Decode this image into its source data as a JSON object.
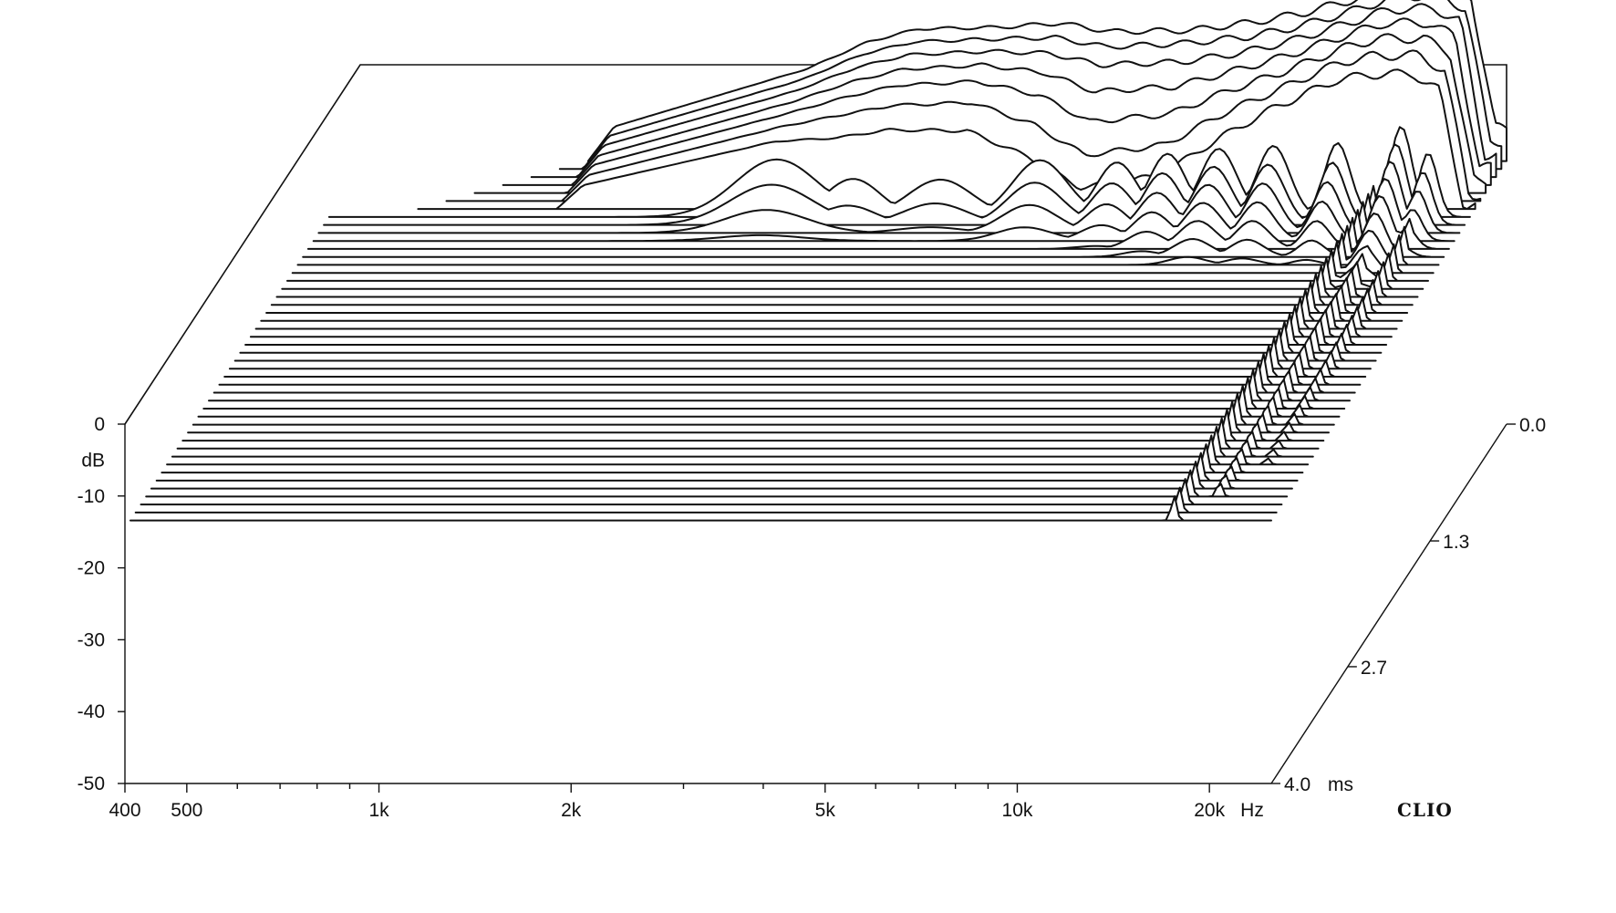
{
  "chart_data": {
    "type": "waterfall",
    "brand": "CLIO",
    "x_axis": {
      "scale": "log",
      "range_hz": [
        400,
        25000
      ],
      "unit_label": "Hz",
      "ticks": [
        {
          "value": 400,
          "label": "400"
        },
        {
          "value": 500,
          "label": "500"
        },
        {
          "value": 1000,
          "label": "1k"
        },
        {
          "value": 2000,
          "label": "2k"
        },
        {
          "value": 5000,
          "label": "5k"
        },
        {
          "value": 10000,
          "label": "10k"
        },
        {
          "value": 20000,
          "label": "20k"
        }
      ],
      "minor_ticks_hz": [
        600,
        700,
        800,
        900,
        3000,
        4000,
        6000,
        7000,
        8000,
        9000
      ]
    },
    "y_axis": {
      "unit_label": "dB",
      "range_db": [
        -50,
        0
      ],
      "ticks": [
        {
          "value": 0,
          "label": "0"
        },
        {
          "value": -10,
          "label": "-10"
        },
        {
          "value": -20,
          "label": "-20"
        },
        {
          "value": -30,
          "label": "-30"
        },
        {
          "value": -40,
          "label": "-40"
        },
        {
          "value": -50,
          "label": "-50"
        }
      ]
    },
    "z_axis": {
      "unit_label": "ms",
      "range_ms": [
        0,
        4.0
      ],
      "ticks": [
        {
          "value": 0.0,
          "label": "0.0"
        },
        {
          "value": 1.3,
          "label": "1.3"
        },
        {
          "value": 2.7,
          "label": "2.7"
        },
        {
          "value": 4.0,
          "label": "4.0"
        }
      ]
    },
    "floor_db": -13.4,
    "slice_count": 46,
    "slice_step_ms": 0.0889,
    "first_slice_freq_hz": 910,
    "anchor_freq_hz": [
      400,
      910,
      1000,
      2000,
      2500,
      3000,
      4000,
      5000,
      6000,
      8000,
      10000,
      12000,
      15000,
      17000,
      20000,
      22000,
      24000
    ],
    "slices_db": [
      [
        -13.4,
        -13.4,
        -8.6,
        -0.6,
        3.2,
        5.0,
        5.2,
        5.8,
        4.6,
        4.8,
        5.9,
        7.2,
        9.5,
        11.3,
        11.5,
        9.6,
        -8.8
      ],
      [
        -13.4,
        -13.4,
        -8.8,
        -1.0,
        2.6,
        4.3,
        4.7,
        4.9,
        3.6,
        4.1,
        5.0,
        6.4,
        8.9,
        10.6,
        10.8,
        8.9,
        -9.5
      ],
      [
        -13.4,
        -13.4,
        -9.0,
        -1.4,
        1.9,
        3.6,
        4.1,
        3.8,
        2.2,
        2.6,
        3.9,
        5.6,
        8.3,
        9.9,
        10.1,
        8.2,
        -10.3
      ],
      [
        -13.4,
        -13.4,
        -9.3,
        -1.9,
        1.0,
        2.7,
        3.3,
        2.2,
        -0.4,
        0.3,
        2.6,
        4.6,
        7.6,
        9.1,
        9.2,
        7.2,
        -11.0
      ],
      [
        -13.4,
        -13.4,
        -9.5,
        -2.4,
        0.0,
        1.6,
        2.1,
        0.2,
        -3.5,
        -2.4,
        1.0,
        3.4,
        6.8,
        8.1,
        8.1,
        6.1,
        -11.8
      ],
      [
        -13.4,
        -13.4,
        -9.8,
        -3.1,
        -1.4,
        -0.1,
        0.3,
        -2.8,
        -7.0,
        -5.6,
        -1.0,
        2.0,
        5.8,
        6.8,
        6.9,
        4.7,
        -12.5
      ],
      [
        -13.4,
        -13.4,
        -10.1,
        -4.0,
        -3.5,
        -2.4,
        -2.5,
        -6.2,
        -10.4,
        -8.8,
        -3.4,
        0.5,
        4.4,
        5.3,
        5.4,
        3.0,
        -13.1
      ]
    ],
    "decay_lobes": [
      {
        "center_hz": 2050,
        "width_octaves": 0.45,
        "start_db": -3.0,
        "decay_db_per_slice": 2.4
      },
      {
        "center_hz": 2700,
        "width_octaves": 0.3,
        "start_db": -5.5,
        "decay_db_per_slice": 2.6
      },
      {
        "center_hz": 3700,
        "width_octaves": 0.35,
        "start_db": -6.0,
        "decay_db_per_slice": 2.2
      },
      {
        "center_hz": 5300,
        "width_octaves": 0.3,
        "start_db": -3.5,
        "decay_db_per_slice": 2.0
      },
      {
        "center_hz": 7000,
        "width_octaves": 0.22,
        "start_db": -4.0,
        "decay_db_per_slice": 1.8
      },
      {
        "center_hz": 8400,
        "width_octaves": 0.2,
        "start_db": -3.0,
        "decay_db_per_slice": 1.6
      },
      {
        "center_hz": 10100,
        "width_octaves": 0.2,
        "start_db": -2.5,
        "decay_db_per_slice": 1.4
      },
      {
        "center_hz": 12300,
        "width_octaves": 0.18,
        "start_db": -2.0,
        "decay_db_per_slice": 1.5
      },
      {
        "center_hz": 15500,
        "width_octaves": 0.14,
        "start_db": -1.5,
        "decay_db_per_slice": 1.6
      },
      {
        "center_hz": 19500,
        "width_octaves": 0.12,
        "start_db": 0.5,
        "decay_db_per_slice": 1.3
      },
      {
        "center_hz": 21500,
        "width_octaves": 0.1,
        "start_db": -3.0,
        "decay_db_per_slice": 1.5
      }
    ],
    "resonance_ridges": [
      {
        "freq_hz": 17600,
        "peak_db": -6.0,
        "slices_from": 6,
        "slices_to": 45,
        "decay_db_per_slice": 0.08
      },
      {
        "freq_hz": 19600,
        "peak_db": -7.0,
        "slices_from": 6,
        "slices_to": 42,
        "decay_db_per_slice": 0.1
      },
      {
        "freq_hz": 21600,
        "peak_db": -8.0,
        "slices_from": 6,
        "slices_to": 38,
        "decay_db_per_slice": 0.12
      }
    ]
  }
}
